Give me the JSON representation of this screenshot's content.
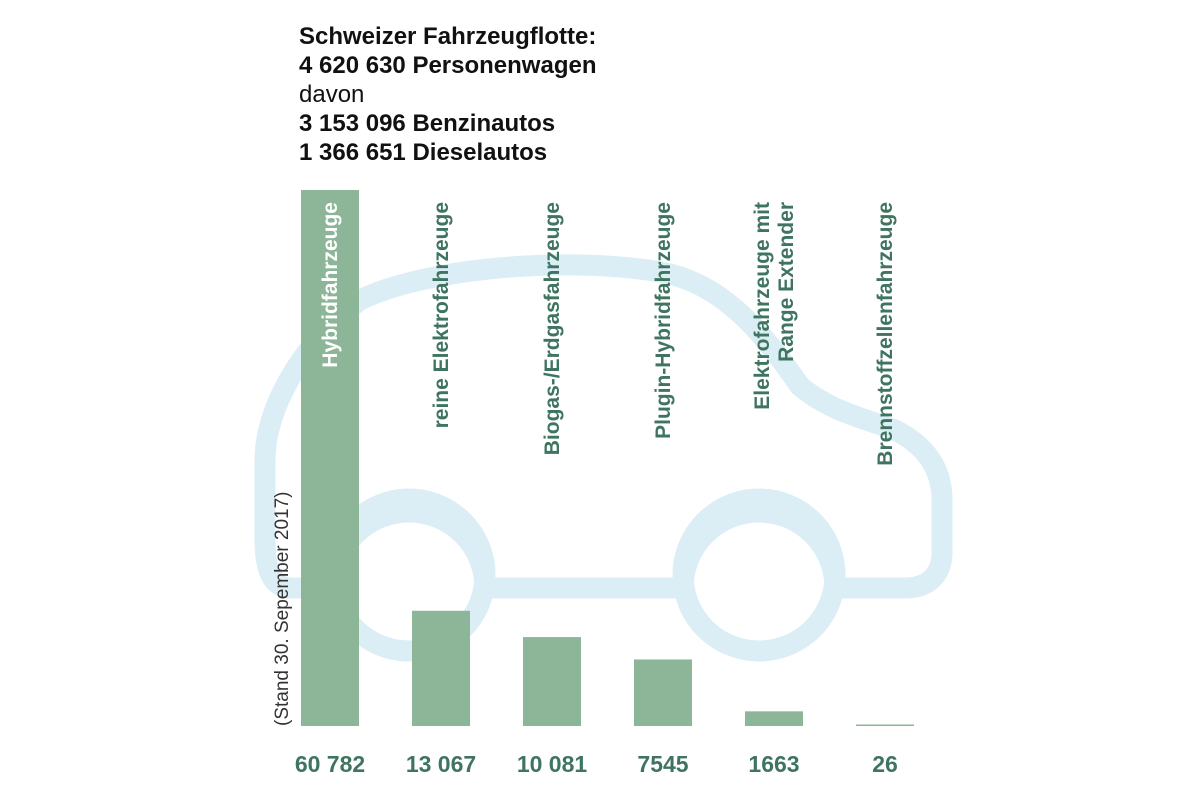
{
  "header": {
    "line1": "Schweizer Fahrzeugflotte:",
    "line2": "4 620 630 Personenwagen",
    "line3": "davon",
    "line4": "3 153 096 Benzinautos",
    "line5": "1 366 651 Dieselautos"
  },
  "colors": {
    "bar": "#8db598",
    "label": "#3f7560",
    "car_outline": "#dbedf5",
    "header_text": "#111111",
    "note_text": "#333333"
  },
  "chart_data": {
    "type": "bar",
    "categories": [
      "Hybridfahrzeuge",
      "reine Elektrofahrzeuge",
      "Biogas-/Erdgasfahrzeuge",
      "Plugin-Hybridfahrzeuge",
      "Elektrofahrzeuge mit Range Extender",
      "Brennstoffzellenfahrzeuge"
    ],
    "category_label_lines": [
      [
        "Hybridfahrzeuge"
      ],
      [
        "reine Elektrofahrzeuge"
      ],
      [
        "Biogas-/Erdgasfahrzeuge"
      ],
      [
        "Plugin-Hybridfahrzeuge"
      ],
      [
        "Elektrofahrzeuge mit",
        "Range Extender"
      ],
      [
        "Brennstoffzellenfahrzeuge"
      ]
    ],
    "values": [
      60782,
      13067,
      10081,
      7545,
      1663,
      26
    ],
    "value_labels": [
      "60 782",
      "13 067",
      "10 081",
      "7545",
      "1663",
      "26"
    ],
    "note": "(Stand 30. Sepember 2017)",
    "ylim": [
      0,
      60782
    ],
    "xlabel": "",
    "ylabel": "",
    "grid": false,
    "legend": "none",
    "background_icon": "car-outline-icon"
  }
}
